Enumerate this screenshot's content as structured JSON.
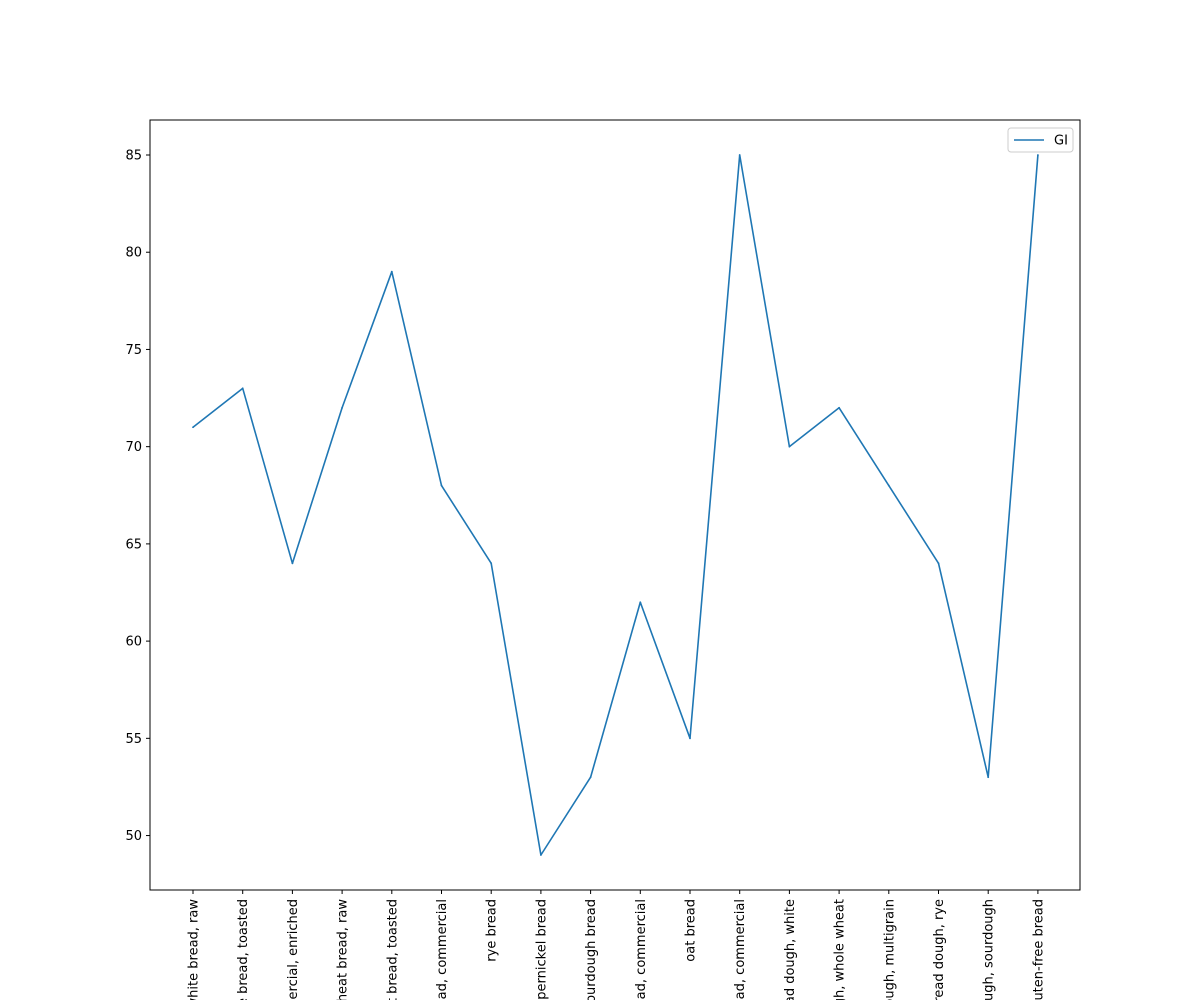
{
  "chart_data": {
    "type": "line",
    "categories": [
      "white bread, raw",
      "white bread, toasted",
      "commercial, enriched",
      "wheat bread, raw",
      "wheat bread, toasted",
      "bread, commercial",
      "rye bread",
      "pumpernickel bread",
      "sourdough bread",
      "bread, commercial",
      "oat bread",
      "bread, commercial",
      "bread dough, white",
      "dough, whole wheat",
      "dough, multigrain",
      "bread dough, rye",
      "dough, sourdough",
      "gluten-free bread"
    ],
    "series": [
      {
        "name": "GI",
        "color": "#1f77b4",
        "values": [
          71,
          73,
          64,
          72,
          79,
          68,
          64,
          49,
          53,
          62,
          55,
          85,
          70,
          72,
          68,
          64,
          53,
          85
        ]
      }
    ],
    "ylim": [
      47.2,
      86.8
    ],
    "yticks": [
      50,
      55,
      60,
      65,
      70,
      75,
      80,
      85
    ],
    "legend_position": "top-right",
    "grid": false,
    "title": "",
    "xlabel": "",
    "ylabel": ""
  }
}
